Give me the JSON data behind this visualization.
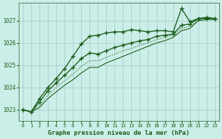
{
  "title": "Graphe pression niveau de la mer (hPa)",
  "background_color": "#cceee8",
  "grid_color": "#aacccc",
  "line_color": "#1a5c1a",
  "xlim": [
    -0.5,
    23.5
  ],
  "ylim": [
    1022.5,
    1027.8
  ],
  "yticks": [
    1023,
    1024,
    1025,
    1026,
    1027
  ],
  "xticks": [
    0,
    1,
    2,
    3,
    4,
    5,
    6,
    7,
    8,
    9,
    10,
    11,
    12,
    13,
    14,
    15,
    16,
    17,
    18,
    19,
    20,
    21,
    22,
    23
  ],
  "series": [
    {
      "data": [
        1023.0,
        1022.9,
        1023.5,
        1024.0,
        1024.4,
        1024.85,
        1025.4,
        1025.95,
        1026.3,
        1026.35,
        1026.45,
        1026.5,
        1026.5,
        1026.6,
        1026.55,
        1026.5,
        1026.55,
        1026.55,
        1026.5,
        1027.55,
        1026.95,
        1027.1,
        1027.15,
        1027.1
      ],
      "marker": "+",
      "markersize": 5,
      "linewidth": 1.0,
      "linestyle": "-"
    },
    {
      "data": [
        1023.0,
        1022.9,
        1023.35,
        1023.85,
        1024.2,
        1024.55,
        1024.9,
        1025.3,
        1025.55,
        1025.5,
        1025.65,
        1025.8,
        1025.9,
        1026.0,
        1026.1,
        1026.15,
        1026.3,
        1026.35,
        1026.4,
        1026.8,
        1026.85,
        1027.1,
        1027.1,
        1027.1
      ],
      "marker": "+",
      "markersize": 5,
      "linewidth": 1.0,
      "linestyle": "-"
    },
    {
      "data": [
        1023.0,
        1022.9,
        1023.2,
        1023.65,
        1024.0,
        1024.3,
        1024.6,
        1024.95,
        1025.2,
        1025.2,
        1025.35,
        1025.5,
        1025.65,
        1025.75,
        1025.9,
        1026.0,
        1026.15,
        1026.25,
        1026.35,
        1026.65,
        1026.75,
        1027.05,
        1027.1,
        1027.1
      ],
      "marker": null,
      "markersize": 0,
      "linewidth": 0.8,
      "linestyle": ":"
    },
    {
      "data": [
        1023.0,
        1022.9,
        1023.1,
        1023.5,
        1023.8,
        1024.1,
        1024.35,
        1024.65,
        1024.9,
        1024.9,
        1025.1,
        1025.25,
        1025.4,
        1025.55,
        1025.7,
        1025.85,
        1026.0,
        1026.1,
        1026.25,
        1026.55,
        1026.65,
        1027.0,
        1027.05,
        1027.05
      ],
      "marker": null,
      "markersize": 0,
      "linewidth": 0.8,
      "linestyle": "-"
    }
  ]
}
